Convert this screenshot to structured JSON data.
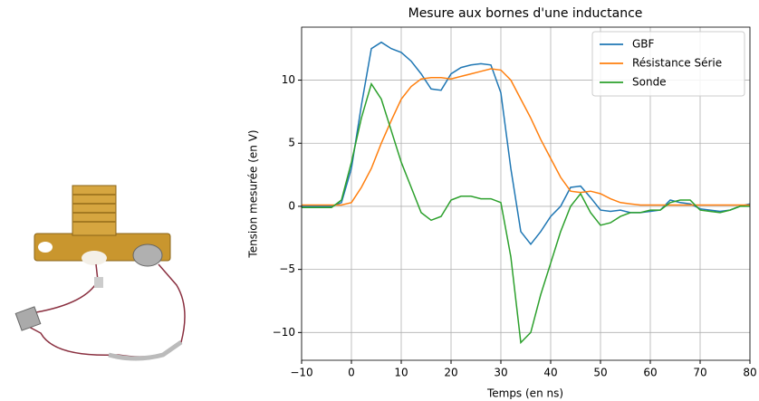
{
  "chart_data": {
    "type": "line",
    "title": "Mesure aux bornes d'une inductance",
    "xlabel": "Temps (en ns)",
    "ylabel": "Tension mesurée (en V)",
    "x": [
      -10,
      -8,
      -6,
      -4,
      -2,
      0,
      2,
      4,
      6,
      8,
      10,
      12,
      14,
      16,
      18,
      20,
      22,
      24,
      26,
      28,
      30,
      32,
      34,
      36,
      38,
      40,
      42,
      44,
      46,
      48,
      50,
      52,
      54,
      56,
      58,
      60,
      62,
      64,
      66,
      68,
      70,
      72,
      74,
      76,
      78,
      80
    ],
    "series": [
      {
        "name": "GBF",
        "color": "#1f77b4",
        "values": [
          0,
          0,
          0,
          0,
          0.3,
          3,
          8,
          12.5,
          13,
          12.5,
          12.2,
          11.5,
          10.5,
          9.3,
          9.2,
          10.5,
          11,
          11.2,
          11.3,
          11.2,
          9,
          3,
          -2,
          -3,
          -2,
          -0.8,
          0,
          1.5,
          1.6,
          0.7,
          -0.3,
          -0.4,
          -0.3,
          -0.5,
          -0.5,
          -0.4,
          -0.3,
          0.5,
          0.3,
          0.2,
          -0.2,
          -0.3,
          -0.4,
          -0.3,
          0,
          0.2
        ]
      },
      {
        "name": "Résistance Série",
        "color": "#ff7f0e",
        "values": [
          0.1,
          0.1,
          0.1,
          0.1,
          0.1,
          0.3,
          1.5,
          3,
          5,
          6.8,
          8.5,
          9.5,
          10.1,
          10.2,
          10.2,
          10.1,
          10.3,
          10.5,
          10.7,
          10.9,
          10.8,
          10,
          8.5,
          7,
          5.3,
          3.8,
          2.3,
          1.2,
          1.1,
          1.2,
          1,
          0.6,
          0.3,
          0.2,
          0.1,
          0.1,
          0.1,
          0.1,
          0.1,
          0.1,
          0.1,
          0.1,
          0.1,
          0.1,
          0.1,
          0.1
        ]
      },
      {
        "name": "Sonde",
        "color": "#2ca02c",
        "values": [
          -0.1,
          -0.1,
          -0.1,
          -0.1,
          0.5,
          3.5,
          7,
          9.7,
          8.5,
          6,
          3.5,
          1.5,
          -0.5,
          -1.1,
          -0.8,
          0.5,
          0.8,
          0.8,
          0.6,
          0.6,
          0.3,
          -4,
          -10.8,
          -10,
          -7,
          -4.5,
          -2,
          0,
          1,
          -0.5,
          -1.5,
          -1.3,
          -0.8,
          -0.5,
          -0.5,
          -0.3,
          -0.3,
          0.3,
          0.5,
          0.5,
          -0.3,
          -0.4,
          -0.5,
          -0.3,
          0,
          0
        ]
      }
    ],
    "xlim": [
      -10,
      80
    ],
    "xticks": [
      {
        "value": -10,
        "label": "−10"
      },
      0,
      10,
      20,
      30,
      40,
      50,
      60,
      70,
      80
    ],
    "ylim": [
      -12.2,
      14.2
    ],
    "yticks": [
      {
        "value": -10,
        "label": "−10"
      },
      {
        "value": -5,
        "label": "−5"
      },
      0,
      5,
      10
    ],
    "grid": true,
    "legend": "upper right"
  }
}
